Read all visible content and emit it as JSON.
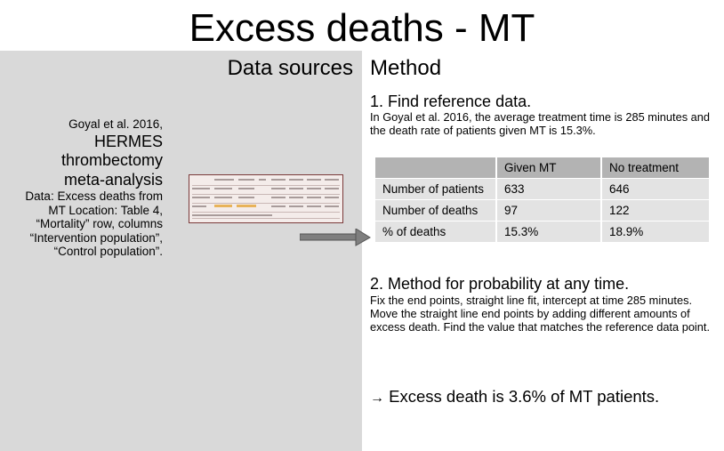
{
  "slide": {
    "title": "Excess deaths - MT"
  },
  "left": {
    "heading": "Data sources",
    "reference": {
      "authors": "Goyal et al. 2016,",
      "title_lines": [
        "HERMES",
        "thrombectomy",
        "meta-analysis"
      ],
      "details": "Data: Excess deaths from MT Location: Table 4, “Mortality” row, columns “Intervention population”, “Control population”."
    }
  },
  "right": {
    "heading": "Method",
    "step1": {
      "heading": "1. Find reference data.",
      "text": "In Goyal et al. 2016, the average treatment time is 285 minutes and the death rate of patients given MT is 15.3%."
    },
    "table": {
      "headers": [
        "",
        "Given MT",
        "No treatment"
      ],
      "rows": [
        [
          "Number of patients",
          "633",
          "646"
        ],
        [
          "Number of deaths",
          "97",
          "122"
        ],
        [
          "% of deaths",
          "15.3%",
          "18.9%"
        ]
      ]
    },
    "step2": {
      "heading": "2. Method for probability at any time.",
      "text": "Fix the end points, straight line fit, intercept at time 285 minutes. Move the straight line end points by adding different amounts of excess death. Find the value that matches the reference data point."
    },
    "conclusion": {
      "arrow": "→",
      "text": "Excess death is 3.6% of MT patients."
    }
  },
  "colors": {
    "left_panel_bg": "#d9d9d9",
    "table_header_bg": "#b3b3b3",
    "table_cell_bg": "#e3e3e3",
    "arrow": "#7f7f7f"
  },
  "icons": {
    "pointer": "right-arrow-icon",
    "thumbnail": "table-thumbnail-image"
  }
}
